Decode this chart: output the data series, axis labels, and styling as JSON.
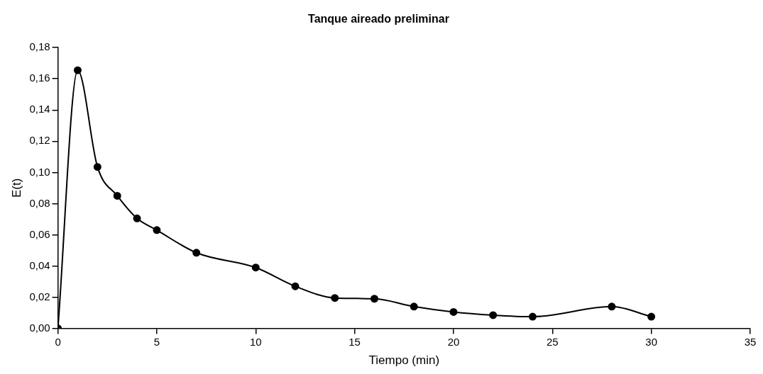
{
  "chart_data": {
    "type": "line",
    "title": "Tanque aireado preliminar",
    "xlabel": "Tiempo (min)",
    "ylabel": "E(t)",
    "x": [
      0,
      1,
      2,
      3,
      4,
      5,
      7,
      10,
      12,
      14,
      16,
      18,
      20,
      22,
      24,
      28,
      30
    ],
    "series": [
      {
        "color": "#000000",
        "values": [
          0,
          0.1655,
          0.1035,
          0.085,
          0.0705,
          0.063,
          0.0485,
          0.039,
          0.027,
          0.0195,
          0.019,
          0.014,
          0.0105,
          0.0085,
          0.0075,
          0.014,
          0.0075
        ]
      }
    ],
    "xlim": [
      0,
      35
    ],
    "xticks": [
      0,
      5,
      10,
      15,
      20,
      25,
      30,
      35
    ],
    "ylim": [
      0,
      0.18
    ],
    "yticks": [
      {
        "value": 0,
        "label": "0,00"
      },
      {
        "value": 0.02,
        "label": "0,02"
      },
      {
        "value": 0.04,
        "label": "0,04"
      },
      {
        "value": 0.06,
        "label": "0,06"
      },
      {
        "value": 0.08,
        "label": "0,08"
      },
      {
        "value": 0.1,
        "label": "0,10"
      },
      {
        "value": 0.12,
        "label": "0,12"
      },
      {
        "value": 0.14,
        "label": "0,14"
      },
      {
        "value": 0.16,
        "label": "0,16"
      },
      {
        "value": 0.18,
        "label": "0,18"
      }
    ],
    "grid": false,
    "legend": false,
    "marker": "circle",
    "line_style": "solid"
  }
}
